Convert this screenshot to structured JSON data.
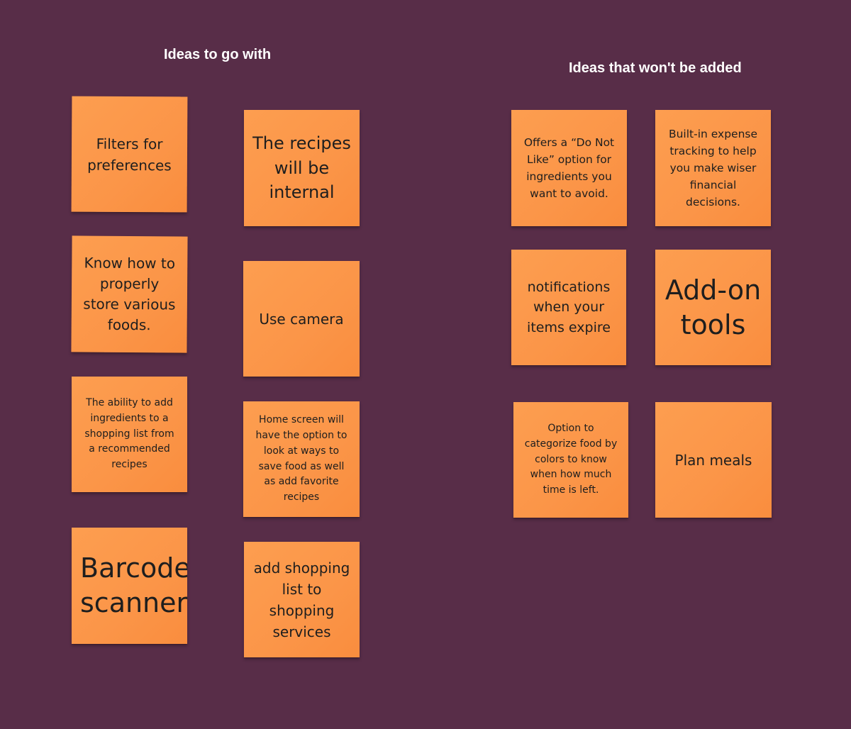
{
  "columns": {
    "left_heading": "Ideas to go with",
    "right_heading": "Ideas that won't be added"
  },
  "accepted_notes": {
    "filters": "Filters for preferences",
    "recipes_internal": "The recipes will be internal",
    "store_foods": "Know how to properly store various foods.",
    "use_camera": "Use camera",
    "add_ingredients": "The ability to add ingredients to a shopping list from a recommended recipes",
    "home_screen": "Home screen will have the option to look at ways to save food as well as add favorite recipes",
    "barcode": "Barcode scanner",
    "shopping_services": "add shopping list to shopping services"
  },
  "rejected_notes": {
    "do_not_like": "Offers a “Do Not Like” option for ingredients you want to avoid.",
    "expense_tracking": "Built-in expense tracking to help you make wiser financial decisions.",
    "notifications": "notifications when your items expire",
    "add_on_tools": "Add-on tools",
    "categorize_colors": "Option to categorize food by colors to know when how much time is left.",
    "plan_meals": "Plan meals"
  },
  "colors": {
    "board_background": "#582d48",
    "sticky_note": "#fb9548",
    "heading_text": "#ffffff"
  }
}
